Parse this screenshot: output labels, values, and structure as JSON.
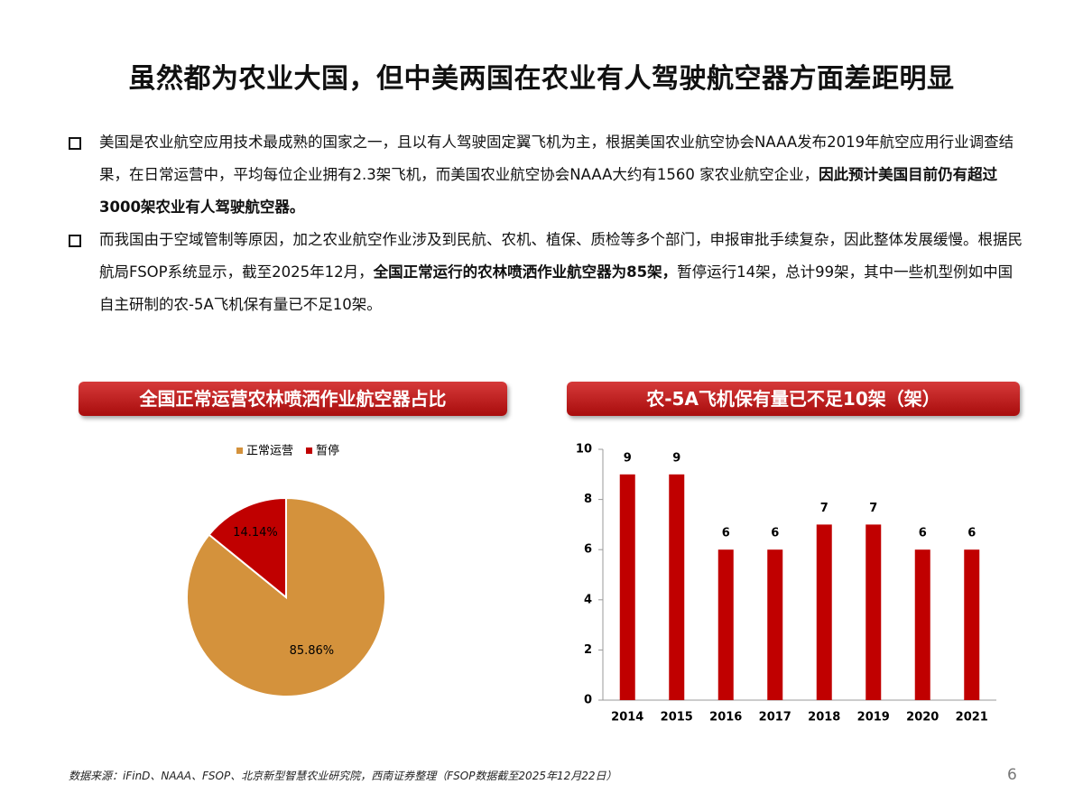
{
  "title": "虽然都为农业大国，但中美两国在农业有人驾驶航空器方面差距明显",
  "bullets": [
    {
      "segments": [
        {
          "text": "美国是农业航空应用技术最成熟的国家之一，且以有人驾驶固定翼飞机为主，根据美国农业航空协会NAAA发布2019年航空应用行业调查结果，在日常运营中，平均每位企业拥有2.3架飞机，而美国农业航空协会NAAA大约有1560 家农业航空企业，",
          "bold": false
        },
        {
          "text": "因此预计美国目前仍有超过3000架农业有人驾驶航空器。",
          "bold": true
        }
      ]
    },
    {
      "segments": [
        {
          "text": "而我国由于空域管制等原因，加之农业航空作业涉及到民航、农机、植保、质检等多个部门，申报审批手续复杂，因此整体发展缓慢。根据民航局FSOP系统显示，截至2025年12月，",
          "bold": false
        },
        {
          "text": "全国正常运行的农林喷洒作业航空器为85架，",
          "bold": true
        },
        {
          "text": "暂停运行14架，总计99架，其中一些机型例如中国自主研制的农-5A飞机保有量已不足10架。",
          "bold": false
        }
      ]
    }
  ],
  "chart_data": [
    {
      "type": "pie",
      "title": "全国正常运营农林喷洒作业航空器占比",
      "categories": [
        "正常运营",
        "暂停"
      ],
      "values": [
        85.86,
        14.14
      ],
      "value_labels": [
        "85.86%",
        "14.14%"
      ],
      "colors": [
        "#d4923c",
        "#c00000"
      ],
      "legend": "top"
    },
    {
      "type": "bar",
      "title": "农-5A飞机保有量已不足10架（架）",
      "categories": [
        "2014",
        "2015",
        "2016",
        "2017",
        "2018",
        "2019",
        "2020",
        "2021"
      ],
      "values": [
        9,
        9,
        6,
        6,
        7,
        7,
        6,
        6
      ],
      "color": "#c00000",
      "ylim": [
        0,
        10
      ],
      "yticks": [
        0,
        2,
        4,
        6,
        8,
        10
      ],
      "grid": false
    }
  ],
  "source": "数据来源：iFinD、NAAA、FSOP、北京新型智慧农业研究院，西南证券整理（FSOP数据截至2025年12月22日）",
  "page_number": "6"
}
